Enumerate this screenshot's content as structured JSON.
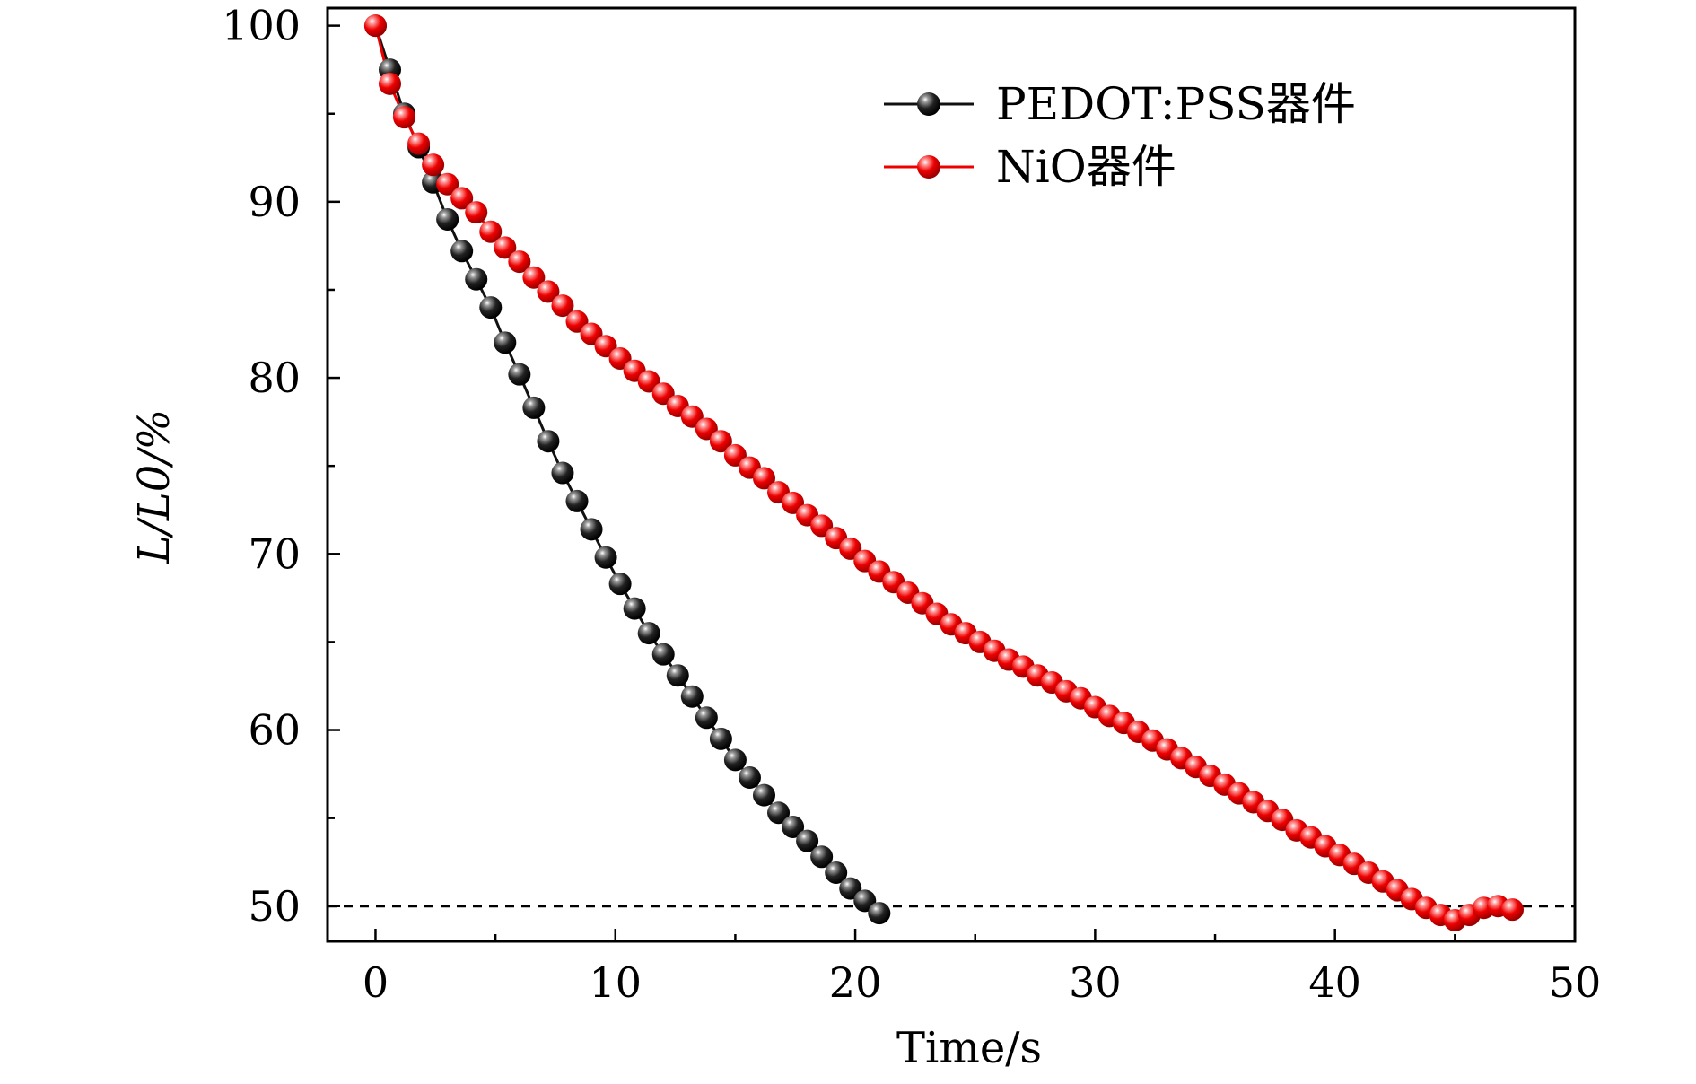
{
  "chart_data": {
    "type": "line",
    "xlabel": "Time/s",
    "ylabel": "L/L0/%",
    "xlim": [
      -2,
      50
    ],
    "ylim": [
      48,
      101
    ],
    "xticks": [
      0,
      10,
      20,
      30,
      40,
      50
    ],
    "yticks": [
      50,
      60,
      70,
      80,
      90,
      100
    ],
    "grid": false,
    "legend_position": "top-right",
    "reference_line": {
      "y": 50,
      "style": "dashed",
      "color": "#000000"
    },
    "series": [
      {
        "name": "PEDOT:PSS器件",
        "color": "#111111",
        "x": [
          0,
          0.6,
          1.2,
          1.8,
          2.4,
          3.0,
          3.6,
          4.2,
          4.8,
          5.4,
          6.0,
          6.6,
          7.2,
          7.8,
          8.4,
          9.0,
          9.6,
          10.2,
          10.8,
          11.4,
          12.0,
          12.6,
          13.2,
          13.8,
          14.4,
          15.0,
          15.6,
          16.2,
          16.8,
          17.4,
          18.0,
          18.6,
          19.2,
          19.8,
          20.4,
          21.0
        ],
        "y": [
          100,
          97.5,
          95.0,
          93.1,
          91.1,
          89.0,
          87.2,
          85.6,
          84.0,
          82.0,
          80.2,
          78.3,
          76.4,
          74.6,
          73.0,
          71.4,
          69.8,
          68.3,
          66.9,
          65.5,
          64.3,
          63.1,
          61.9,
          60.7,
          59.5,
          58.3,
          57.3,
          56.3,
          55.3,
          54.5,
          53.7,
          52.8,
          51.9,
          51.0,
          50.3,
          49.6
        ]
      },
      {
        "name": "NiO器件",
        "color": "#ee0000",
        "x": [
          0,
          0.6,
          1.2,
          1.8,
          2.4,
          3.0,
          3.6,
          4.2,
          4.8,
          5.4,
          6.0,
          6.6,
          7.2,
          7.8,
          8.4,
          9.0,
          9.6,
          10.2,
          10.8,
          11.4,
          12.0,
          12.6,
          13.2,
          13.8,
          14.4,
          15.0,
          15.6,
          16.2,
          16.8,
          17.4,
          18.0,
          18.6,
          19.2,
          19.8,
          20.4,
          21.0,
          21.6,
          22.2,
          22.8,
          23.4,
          24.0,
          24.6,
          25.2,
          25.8,
          26.4,
          27.0,
          27.6,
          28.2,
          28.8,
          29.4,
          30.0,
          30.6,
          31.2,
          31.8,
          32.4,
          33.0,
          33.6,
          34.2,
          34.8,
          35.4,
          36.0,
          36.6,
          37.2,
          37.8,
          38.4,
          39.0,
          39.6,
          40.2,
          40.8,
          41.4,
          42.0,
          42.6,
          43.2,
          43.8,
          44.4,
          45.0,
          45.6,
          46.2,
          46.8,
          47.4
        ],
        "y": [
          100,
          96.7,
          94.8,
          93.3,
          92.1,
          91.0,
          90.2,
          89.4,
          88.3,
          87.4,
          86.6,
          85.7,
          84.9,
          84.1,
          83.2,
          82.5,
          81.8,
          81.1,
          80.4,
          79.8,
          79.1,
          78.4,
          77.8,
          77.1,
          76.4,
          75.6,
          74.9,
          74.3,
          73.5,
          72.9,
          72.2,
          71.6,
          70.9,
          70.3,
          69.6,
          69.0,
          68.4,
          67.8,
          67.2,
          66.6,
          66.0,
          65.5,
          65.0,
          64.5,
          64.0,
          63.6,
          63.1,
          62.7,
          62.2,
          61.8,
          61.3,
          60.8,
          60.4,
          59.9,
          59.4,
          58.9,
          58.4,
          57.9,
          57.4,
          56.9,
          56.4,
          55.9,
          55.4,
          54.9,
          54.3,
          53.9,
          53.4,
          52.9,
          52.4,
          51.9,
          51.4,
          50.9,
          50.4,
          49.9,
          49.5,
          49.2,
          49.5,
          49.9,
          50.0,
          49.8
        ]
      }
    ],
    "legend": [
      {
        "label": "PEDOT:PSS器件",
        "color": "#111111"
      },
      {
        "label": "NiO器件",
        "color": "#ee0000"
      }
    ]
  }
}
